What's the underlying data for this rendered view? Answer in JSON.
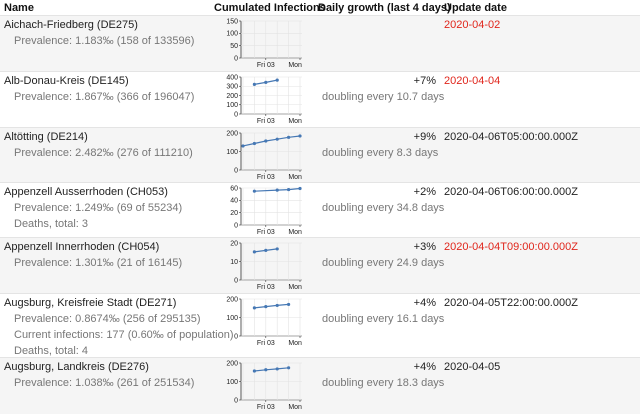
{
  "header": {
    "name": "Name",
    "chart": "Cumulated Infections",
    "growth": "Daily growth (last 4 days)",
    "update": "Update date"
  },
  "x_ticks": [
    "Fri 03",
    "Mon 06"
  ],
  "accent_color": "#4678b4",
  "stale_color": "#e0261c",
  "rows": [
    {
      "name": "Aichach-Friedberg (DE275)",
      "sub": [
        "Prevalence: 1.183‰ (158 of 133596)"
      ],
      "growth_pct": "",
      "doubling": "",
      "update": "2020-04-02",
      "stale": true,
      "yticks": [
        "150",
        "100",
        "50",
        "0"
      ],
      "chart_data": {
        "type": "line",
        "x": [],
        "y": [],
        "ylim": [
          0,
          150
        ]
      }
    },
    {
      "name": "Alb-Donau-Kreis (DE145)",
      "sub": [
        "Prevalence: 1.867‰ (366 of 196047)"
      ],
      "growth_pct": "+7%",
      "doubling": "doubling every 10.7 days",
      "update": "2020-04-04",
      "stale": true,
      "yticks": [
        "400",
        "300",
        "200",
        "100",
        "0"
      ],
      "chart_data": {
        "type": "line",
        "x": [
          "2020-04-02",
          "2020-04-03",
          "2020-04-04"
        ],
        "y": [
          320,
          342,
          366
        ],
        "ylim": [
          0,
          400
        ]
      }
    },
    {
      "name": "Altötting (DE214)",
      "sub": [
        "Prevalence: 2.482‰ (276 of 111210)"
      ],
      "growth_pct": "+9%",
      "doubling": "doubling every 8.3 days",
      "update": "2020-04-06T05:00:00.000Z",
      "stale": false,
      "yticks": [
        "200",
        "100",
        "0"
      ],
      "chart_data": {
        "type": "line",
        "x": [
          "2020-04-01",
          "2020-04-02",
          "2020-04-03",
          "2020-04-04",
          "2020-04-05",
          "2020-04-06"
        ],
        "y": [
          195,
          215,
          235,
          250,
          265,
          276
        ],
        "ylim": [
          0,
          300
        ]
      }
    },
    {
      "name": "Appenzell Ausserrhoden (CH053)",
      "sub": [
        "Prevalence: 1.249‰ (69 of 55234)",
        "Deaths, total: 3"
      ],
      "growth_pct": "+2%",
      "doubling": "doubling every 34.8 days",
      "update": "2020-04-06T06:00:00.000Z",
      "stale": false,
      "yticks": [
        "60",
        "40",
        "20",
        "0"
      ],
      "chart_data": {
        "type": "line",
        "x": [
          "2020-04-02",
          "2020-04-04",
          "2020-04-05",
          "2020-04-06"
        ],
        "y": [
          64,
          66,
          67,
          69
        ],
        "ylim": [
          0,
          70
        ]
      }
    },
    {
      "name": "Appenzell Innerrhoden (CH054)",
      "sub": [
        "Prevalence: 1.301‰ (21 of 16145)"
      ],
      "growth_pct": "+3%",
      "doubling": "doubling every 24.9 days",
      "update": "2020-04-04T09:00:00.000Z",
      "stale": true,
      "yticks": [
        "20",
        "10",
        "0"
      ],
      "chart_data": {
        "type": "line",
        "x": [
          "2020-04-02",
          "2020-04-03",
          "2020-04-04"
        ],
        "y": [
          19,
          20,
          21
        ],
        "ylim": [
          0,
          25
        ]
      }
    },
    {
      "name": "Augsburg, Kreisfreie Stadt (DE271)",
      "sub": [
        "Prevalence: 0.8674‰ (256 of 295135)",
        "Current infections: 177 (0.60‰ of population)",
        "Deaths, total: 4"
      ],
      "growth_pct": "+4%",
      "doubling": "doubling every 16.1 days",
      "update": "2020-04-05T22:00:00.000Z",
      "stale": false,
      "yticks": [
        "200",
        "100",
        "0"
      ],
      "chart_data": {
        "type": "line",
        "x": [
          "2020-04-02",
          "2020-04-03",
          "2020-04-04",
          "2020-04-05"
        ],
        "y": [
          228,
          238,
          248,
          256
        ],
        "ylim": [
          0,
          300
        ]
      }
    },
    {
      "name": "Augsburg, Landkreis (DE276)",
      "sub": [
        "Prevalence: 1.038‰ (261 of 251534)"
      ],
      "growth_pct": "+4%",
      "doubling": "doubling every 18.3 days",
      "update": "2020-04-05",
      "stale": false,
      "yticks": [
        "200",
        "100",
        "0"
      ],
      "chart_data": {
        "type": "line",
        "x": [
          "2020-04-02",
          "2020-04-03",
          "2020-04-04",
          "2020-04-05"
        ],
        "y": [
          235,
          245,
          252,
          261
        ],
        "ylim": [
          0,
          300
        ]
      }
    }
  ]
}
